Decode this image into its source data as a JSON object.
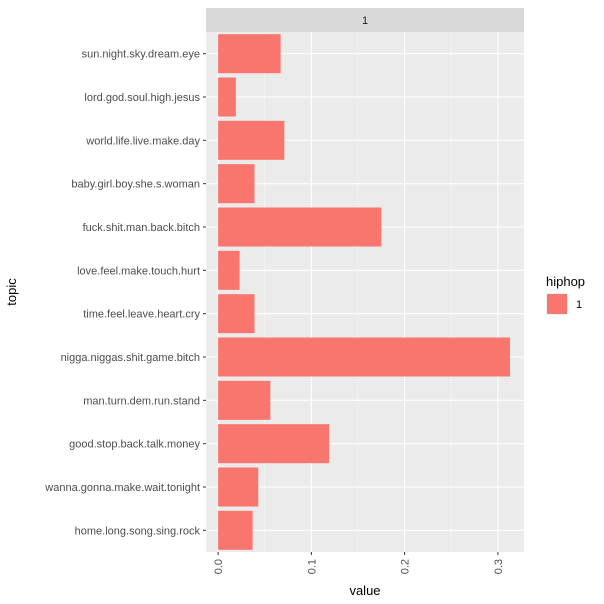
{
  "chart_data": {
    "type": "bar",
    "orientation": "horizontal",
    "facet_label": "1",
    "xlabel": "value",
    "ylabel": "topic",
    "xlim": [
      -0.013,
      0.328
    ],
    "xticks": [
      0.0,
      0.1,
      0.2,
      0.3
    ],
    "xtick_labels": [
      "0.0",
      "0.1",
      "0.2",
      "0.3"
    ],
    "categories": [
      "sun.night.sky.dream.eye",
      "lord.god.soul.high.jesus",
      "world.life.live.make.day",
      "baby.girl.boy.she.s.woman",
      "fuck.shit.man.back.bitch",
      "love.feel.make.touch.hurt",
      "time.feel.leave.heart.cry",
      "nigga.niggas.shit.game.bitch",
      "man.turn.dem.run.stand",
      "good.stop.back.talk.money",
      "wanna.gonna.make.wait.tonight",
      "home.long.song.sing.rock"
    ],
    "series": [
      {
        "name": "1",
        "values": [
          0.067,
          0.019,
          0.071,
          0.039,
          0.175,
          0.023,
          0.039,
          0.313,
          0.056,
          0.119,
          0.043,
          0.037
        ],
        "color": "#F8766D"
      }
    ],
    "legend": {
      "title": "hiphop",
      "entries": [
        "1"
      ],
      "position": "right"
    },
    "grid": true,
    "panel_background": "#EBEBEB",
    "strip_background": "#D9D9D9"
  }
}
